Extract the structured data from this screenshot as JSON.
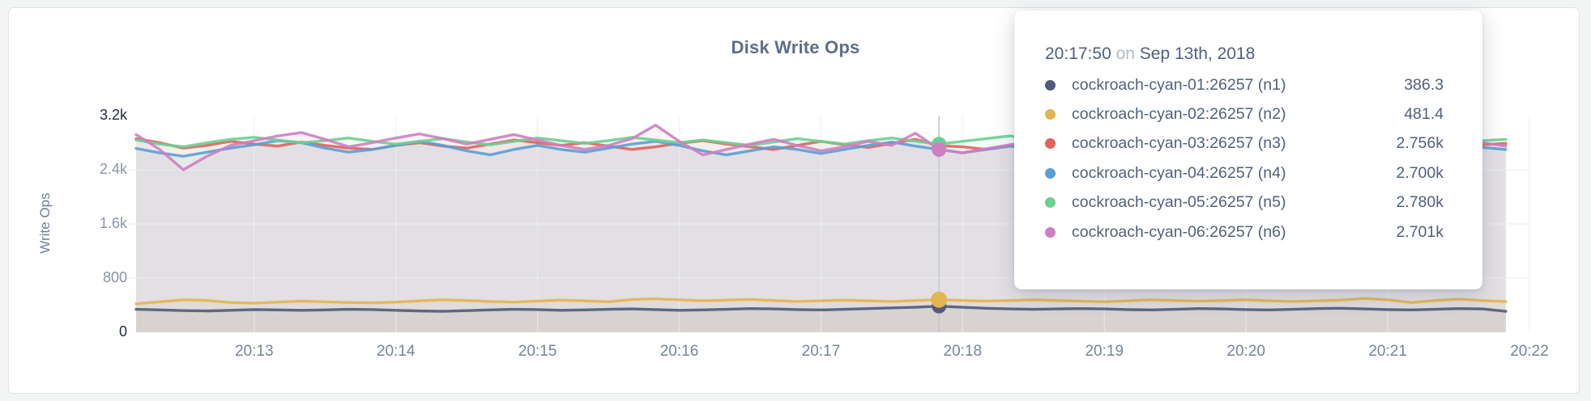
{
  "page": {
    "background": "#f3f5f5"
  },
  "card": {
    "background": "#ffffff",
    "border_color": "#e0e3e4"
  },
  "chart": {
    "title": "Disk Write Ops",
    "title_color": "#5f6e8c",
    "grid_color": "#e9e9e9",
    "grid_highlight_color": "rgba(255,255,255,0.55)",
    "crosshair_color": "#c4c9cf",
    "tick_color": "#8a94a8",
    "tick_emphasis_color": "#222b3f",
    "y_axis": {
      "label": "Write Ops",
      "min": 0,
      "max": 3200,
      "ticks": [
        {
          "value": 0,
          "label": "0",
          "emphasis": true
        },
        {
          "value": 800,
          "label": "800",
          "emphasis": false
        },
        {
          "value": 1600,
          "label": "1.6k",
          "emphasis": false
        },
        {
          "value": 2400,
          "label": "2.4k",
          "emphasis": false
        },
        {
          "value": 3200,
          "label": "3.2k",
          "emphasis": true
        }
      ]
    },
    "x_axis": {
      "span_seconds": 590,
      "ticks": [
        {
          "t": 50,
          "label": "20:13"
        },
        {
          "t": 110,
          "label": "20:14"
        },
        {
          "t": 170,
          "label": "20:15"
        },
        {
          "t": 230,
          "label": "20:16"
        },
        {
          "t": 290,
          "label": "20:17"
        },
        {
          "t": 350,
          "label": "20:18"
        },
        {
          "t": 410,
          "label": "20:19"
        },
        {
          "t": 470,
          "label": "20:20"
        },
        {
          "t": 530,
          "label": "20:21"
        },
        {
          "t": 590,
          "label": "20:22"
        }
      ]
    }
  },
  "chart_data": {
    "type": "line",
    "title": "Disk Write Ops",
    "ylabel": "Write Ops",
    "ylim": [
      0,
      3200
    ],
    "grid": true,
    "start_time": "20:12:10",
    "interval_seconds": 10,
    "x_tick_labels": [
      "20:13",
      "20:14",
      "20:15",
      "20:16",
      "20:17",
      "20:18",
      "20:19",
      "20:20",
      "20:21",
      "20:22"
    ],
    "hover_index": 34,
    "hover_time": "20:17:50",
    "series": [
      {
        "name": "cockroach-cyan-01:26257 (n1)",
        "color": "#4e5b79",
        "values": [
          340,
          330,
          320,
          315,
          325,
          335,
          330,
          325,
          330,
          340,
          335,
          325,
          315,
          310,
          320,
          330,
          340,
          335,
          325,
          330,
          340,
          345,
          335,
          325,
          330,
          340,
          350,
          345,
          335,
          330,
          340,
          350,
          360,
          370,
          386.3,
          370,
          355,
          345,
          340,
          345,
          350,
          345,
          335,
          330,
          340,
          350,
          345,
          335,
          330,
          340,
          350,
          355,
          345,
          335,
          330,
          340,
          350,
          345,
          310
        ]
      },
      {
        "name": "cockroach-cyan-02:26257 (n2)",
        "color": "#e3b54e",
        "values": [
          420,
          450,
          480,
          470,
          440,
          430,
          445,
          460,
          450,
          440,
          435,
          445,
          465,
          480,
          470,
          455,
          445,
          460,
          475,
          465,
          450,
          485,
          495,
          480,
          465,
          475,
          485,
          470,
          455,
          465,
          475,
          465,
          455,
          470,
          481.4,
          470,
          460,
          470,
          480,
          470,
          460,
          450,
          465,
          480,
          470,
          460,
          470,
          480,
          465,
          455,
          465,
          475,
          500,
          480,
          440,
          470,
          490,
          470,
          455
        ]
      },
      {
        "name": "cockroach-cyan-03:26257 (n3)",
        "color": "#e0635c",
        "values": [
          2860,
          2800,
          2720,
          2760,
          2820,
          2780,
          2750,
          2810,
          2760,
          2720,
          2700,
          2760,
          2800,
          2750,
          2720,
          2780,
          2840,
          2800,
          2760,
          2800,
          2750,
          2700,
          2740,
          2790,
          2830,
          2780,
          2740,
          2700,
          2760,
          2820,
          2770,
          2730,
          2790,
          2850,
          2756,
          2740,
          2700,
          2750,
          2800,
          2760,
          2720,
          2770,
          2820,
          2780,
          2740,
          2790,
          2750,
          2710,
          2760,
          2810,
          2770,
          2730,
          2780,
          2830,
          2790,
          2750,
          2800,
          2770,
          2790
        ]
      },
      {
        "name": "cockroach-cyan-04:26257 (n4)",
        "color": "#5b9fd4",
        "values": [
          2715,
          2650,
          2600,
          2660,
          2720,
          2770,
          2830,
          2800,
          2720,
          2660,
          2700,
          2760,
          2820,
          2760,
          2680,
          2620,
          2700,
          2760,
          2700,
          2660,
          2720,
          2780,
          2820,
          2760,
          2680,
          2620,
          2680,
          2740,
          2700,
          2640,
          2700,
          2760,
          2810,
          2750,
          2700,
          2650,
          2700,
          2750,
          2700,
          2660,
          2720,
          2780,
          2740,
          2680,
          2620,
          2680,
          2740,
          2790,
          2750,
          2700,
          2660,
          2710,
          2770,
          2730,
          2690,
          2740,
          2700,
          2730,
          2700
        ]
      },
      {
        "name": "cockroach-cyan-05:26257 (n5)",
        "color": "#6ccf92",
        "values": [
          2840,
          2780,
          2740,
          2800,
          2850,
          2880,
          2840,
          2800,
          2830,
          2870,
          2820,
          2780,
          2820,
          2860,
          2810,
          2770,
          2820,
          2870,
          2830,
          2790,
          2830,
          2880,
          2840,
          2800,
          2840,
          2800,
          2760,
          2810,
          2860,
          2820,
          2780,
          2830,
          2870,
          2820,
          2780,
          2820,
          2860,
          2900,
          2850,
          2810,
          2850,
          2800,
          2760,
          2810,
          2850,
          2890,
          2840,
          2800,
          2840,
          2800,
          2760,
          2810,
          2860,
          2820,
          2780,
          2830,
          2870,
          2830,
          2850
        ]
      },
      {
        "name": "cockroach-cyan-06:26257 (n6)",
        "color": "#cf7ec2",
        "values": [
          2920,
          2700,
          2400,
          2600,
          2760,
          2830,
          2900,
          2950,
          2850,
          2740,
          2800,
          2870,
          2930,
          2860,
          2780,
          2850,
          2920,
          2840,
          2760,
          2700,
          2760,
          2860,
          3060,
          2820,
          2620,
          2700,
          2780,
          2850,
          2760,
          2680,
          2740,
          2820,
          2760,
          2940,
          2701,
          2650,
          2710,
          2770,
          2820,
          2760,
          2700,
          2760,
          2830,
          2770,
          2700,
          2760,
          2820,
          2760,
          2700,
          2750,
          2800,
          2750,
          2700,
          2760,
          2830,
          2780,
          2730,
          2800,
          2750
        ]
      }
    ]
  },
  "tooltip": {
    "time": "20:17:50",
    "conjunction": "on",
    "date": "Sep 13th, 2018",
    "text_color": "#51607e",
    "rows": [
      {
        "name": "cockroach-cyan-01:26257 (n1)",
        "value": "386.3",
        "color": "#4e5b79"
      },
      {
        "name": "cockroach-cyan-02:26257 (n2)",
        "value": "481.4",
        "color": "#e3b54e"
      },
      {
        "name": "cockroach-cyan-03:26257 (n3)",
        "value": "2.756k",
        "color": "#e0635c"
      },
      {
        "name": "cockroach-cyan-04:26257 (n4)",
        "value": "2.700k",
        "color": "#5b9fd4"
      },
      {
        "name": "cockroach-cyan-05:26257 (n5)",
        "value": "2.780k",
        "color": "#6ccf92"
      },
      {
        "name": "cockroach-cyan-06:26257 (n6)",
        "value": "2.701k",
        "color": "#cf7ec2"
      }
    ]
  }
}
